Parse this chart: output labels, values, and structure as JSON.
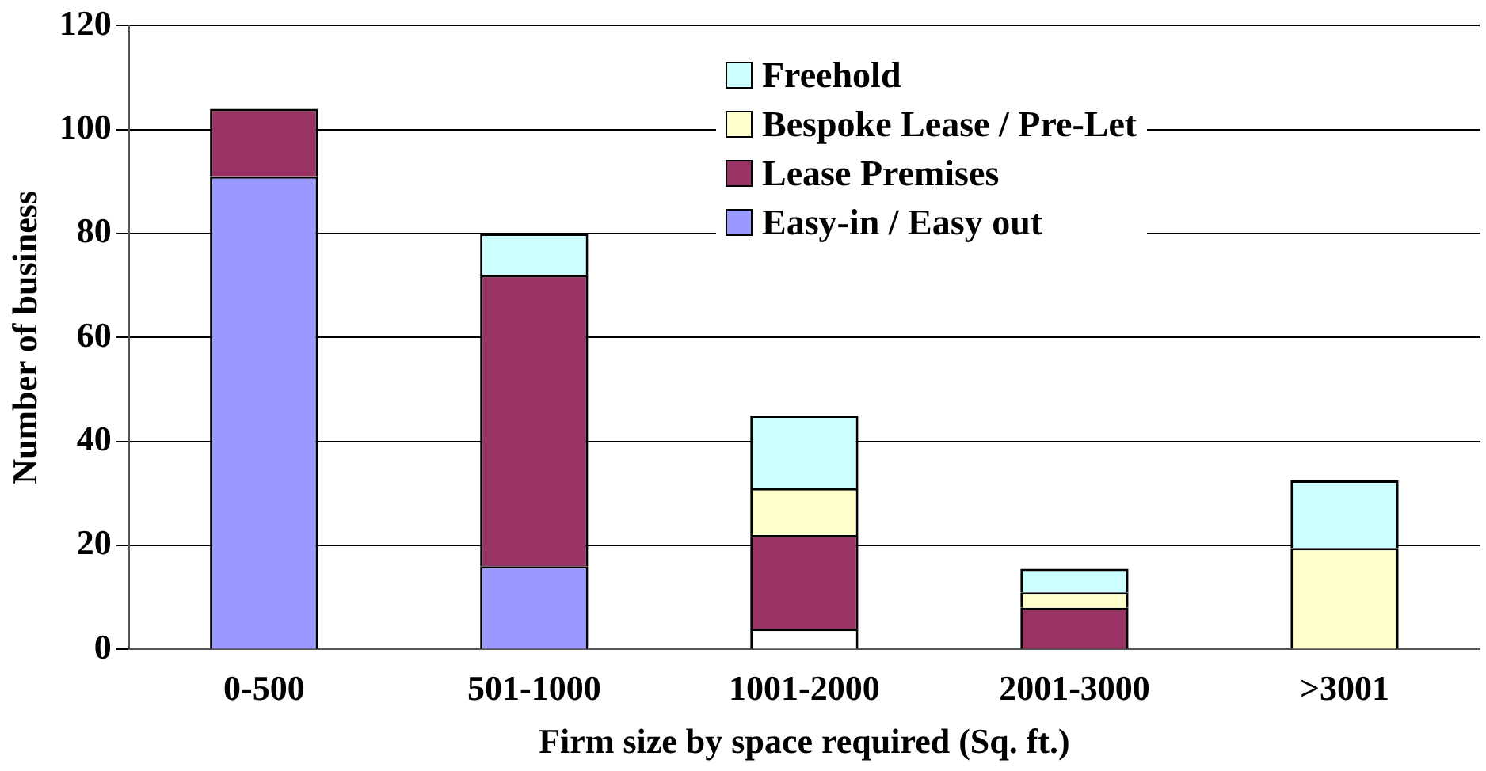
{
  "chart_data": {
    "type": "bar",
    "stacked": true,
    "xlabel": "Firm size by space required (Sq. ft.)",
    "ylabel": "Number of business",
    "categories": [
      "0-500",
      "501-1000",
      "1001-2000",
      "2001-3000",
      ">3001"
    ],
    "series": [
      {
        "name": "Easy-in / Easy out",
        "color": "#9999ff",
        "colors": [
          "#9999ff",
          "#9999ff",
          "#ffffff",
          "#9999ff",
          "#9999ff"
        ],
        "values": [
          91,
          16,
          4,
          null,
          null
        ]
      },
      {
        "name": "Lease Premises",
        "color": "#993366",
        "values": [
          13,
          56,
          18,
          8,
          null
        ]
      },
      {
        "name": "Bespoke Lease / Pre-Let",
        "color": "#ffffcc",
        "values": [
          null,
          null,
          9,
          3,
          19.5
        ]
      },
      {
        "name": "Freehold",
        "color": "#ccffff",
        "values": [
          null,
          8,
          14,
          4.5,
          13
        ]
      }
    ],
    "ylim": [
      0,
      120
    ],
    "yticks": [
      0,
      20,
      40,
      60,
      80,
      100,
      120
    ],
    "grid": "y",
    "legend": "top right"
  }
}
